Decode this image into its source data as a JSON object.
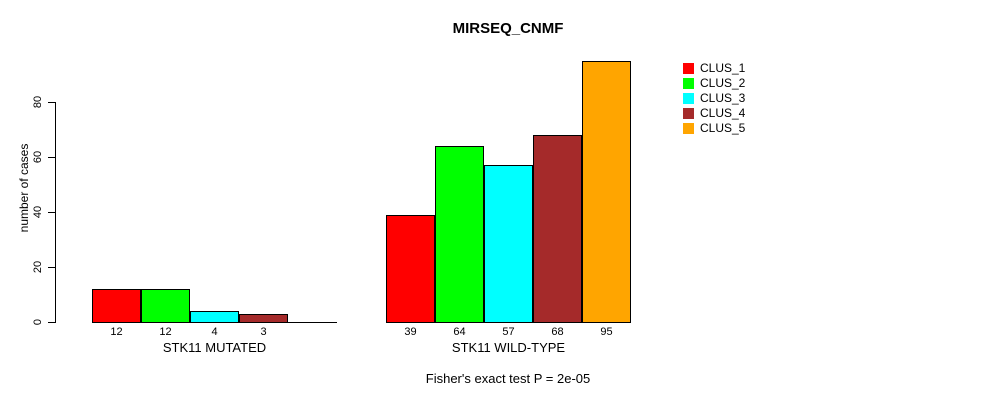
{
  "chart_data": {
    "type": "bar",
    "title": "MIRSEQ_CNMF",
    "ylabel": "number of cases",
    "xlabel": "",
    "ylim": [
      0,
      95
    ],
    "yticks": [
      0,
      20,
      40,
      60,
      80
    ],
    "grid": false,
    "legend_position": "right",
    "footer": "Fisher's exact test P = 2e-05",
    "series": [
      {
        "name": "CLUS_1",
        "color": "#FF0000"
      },
      {
        "name": "CLUS_2",
        "color": "#00FF00"
      },
      {
        "name": "CLUS_3",
        "color": "#00FFFF"
      },
      {
        "name": "CLUS_4",
        "color": "#A52A2A"
      },
      {
        "name": "CLUS_5",
        "color": "#FFA500"
      }
    ],
    "groups": [
      {
        "label": "STK11 MUTATED",
        "values": [
          12,
          12,
          4,
          3,
          0
        ]
      },
      {
        "label": "STK11 WILD-TYPE",
        "values": [
          39,
          64,
          57,
          68,
          95
        ]
      }
    ]
  }
}
